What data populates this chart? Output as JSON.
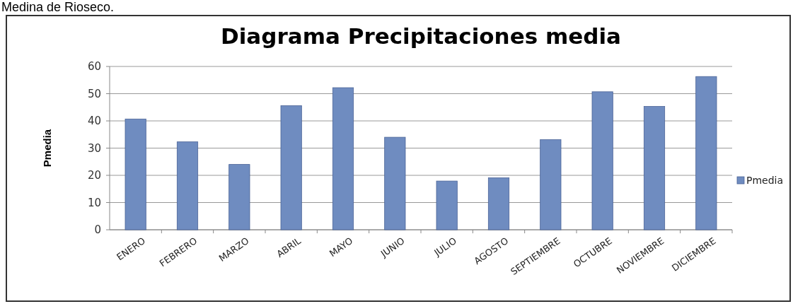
{
  "chart_data": {
    "type": "bar",
    "title": "Diagrama Precipitaciones media",
    "ylabel": "Pmedia",
    "annotations": [
      "Medina de Rioseco."
    ],
    "categories": [
      "ENERO",
      "FEBRERO",
      "MARZO",
      "ABRIL",
      "MAYO",
      "JUNIO",
      "JULIO",
      "AGOSTO",
      "SEPTIEMBRE",
      "OCTUBRE",
      "NOVIEMBRE",
      "DICIEMBRE"
    ],
    "series": [
      {
        "name": "Pmedia",
        "color": "#6f8cc0",
        "values": [
          40.7,
          32.3,
          24.0,
          45.6,
          52.2,
          34.0,
          17.9,
          19.1,
          33.1,
          50.7,
          45.3,
          56.3
        ]
      }
    ],
    "ylim": [
      0,
      60
    ],
    "yticks": [
      0,
      10,
      20,
      30,
      40,
      50,
      60
    ],
    "grid": "y",
    "legend": "right"
  }
}
